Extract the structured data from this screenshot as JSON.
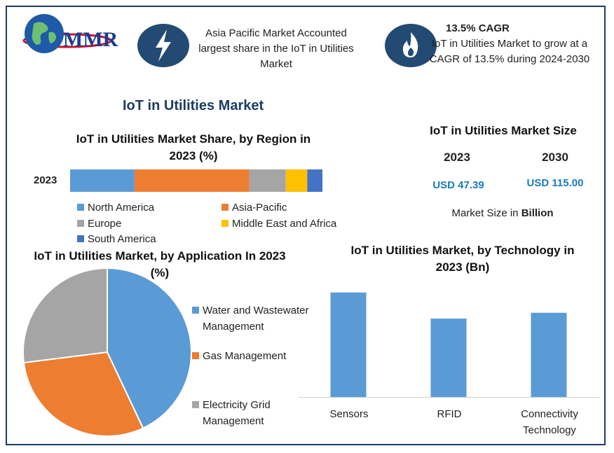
{
  "header": {
    "logo_text": "MMR",
    "feature1": {
      "icon": "lightning-bolt-icon",
      "text": "Asia Pacific Market Accounted largest share in the IoT in Utilities Market"
    },
    "feature2": {
      "icon": "flame-icon",
      "title": "13.5% CAGR",
      "text": "IoT in Utilities Market to grow at a CAGR of 13.5% during 2024-2030"
    }
  },
  "main_title": "IoT in Utilities Market",
  "market_size": {
    "title": "IoT in Utilities Market Size",
    "year1": "2023",
    "year2": "2030",
    "value1": "USD 47.39",
    "value2": "USD 115.00",
    "note_prefix": "Market Size in",
    "note_unit": "Billion"
  },
  "colors": {
    "frame": "#1f3b63",
    "title": "#1f3b63",
    "icon_bg": "#234a72",
    "value_blue": "#1a7bbf",
    "north_america": "#5b9bd5",
    "asia_pacific": "#ed7d31",
    "europe": "#a5a5a5",
    "mea": "#ffc000",
    "south_america": "#4472c4"
  },
  "chart_data": [
    {
      "type": "bar",
      "orientation": "horizontal-stacked",
      "title": "IoT in Utilities Market Share, by Region in 2023 (%)",
      "categories": [
        "2023"
      ],
      "series": [
        {
          "name": "North America",
          "values": [
            25.5
          ]
        },
        {
          "name": "Asia-Pacific",
          "values": [
            45.5
          ]
        },
        {
          "name": "Europe",
          "values": [
            14.5
          ]
        },
        {
          "name": "Middle East and Africa",
          "values": [
            8.5
          ]
        },
        {
          "name": "South America",
          "values": [
            6.0
          ]
        }
      ],
      "xlim": [
        0,
        100
      ]
    },
    {
      "type": "pie",
      "title": "IoT in Utilities Market, by Application In 2023 (%)",
      "labels": [
        "Water and Wastewater Management",
        "Gas Management",
        "Electricity Grid Management"
      ],
      "values": [
        43,
        30,
        27
      ]
    },
    {
      "type": "bar",
      "title": "IoT in Utilities Market, by Technology in 2023 (Bn)",
      "categories": [
        "Sensors",
        "RFID",
        "Connectivity Technology"
      ],
      "values": [
        18,
        13.5,
        14.5
      ],
      "ylim": [
        0,
        20
      ]
    }
  ]
}
